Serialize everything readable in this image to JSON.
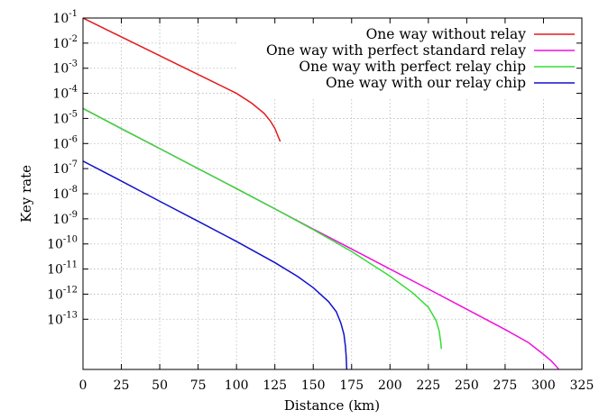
{
  "chart_data": {
    "type": "line",
    "title": "",
    "xlabel": "Distance (km)",
    "ylabel": "Key rate",
    "xlim": [
      0,
      325
    ],
    "x_ticks": [
      0,
      25,
      50,
      75,
      100,
      125,
      150,
      175,
      200,
      225,
      250,
      275,
      300,
      325
    ],
    "y_scale": "log",
    "ylim_exponent": [
      -15,
      -1
    ],
    "y_tick_exponents": [
      -1,
      -2,
      -3,
      -4,
      -5,
      -6,
      -7,
      -8,
      -9,
      -10,
      -11,
      -12,
      -13
    ],
    "grid": true,
    "legend_position": "top-right",
    "series": [
      {
        "name": "One way without relay",
        "color": "#e41a1c",
        "points": [
          [
            0,
            0.1
          ],
          [
            20,
            0.025
          ],
          [
            40,
            0.0063
          ],
          [
            60,
            0.00158
          ],
          [
            80,
            0.0004
          ],
          [
            100,
            0.0001
          ],
          [
            110,
            4e-05
          ],
          [
            118,
            1.6e-05
          ],
          [
            122,
            8e-06
          ],
          [
            125,
            4e-06
          ],
          [
            127,
            2e-06
          ],
          [
            128.5,
            1.2e-06
          ]
        ]
      },
      {
        "name": "One way with perfect standard relay",
        "color": "#ee11dd",
        "points": [
          [
            0,
            2.5e-05
          ],
          [
            25,
            3.9e-06
          ],
          [
            50,
            6.3e-07
          ],
          [
            75,
            1e-07
          ],
          [
            100,
            1.6e-08
          ],
          [
            125,
            2.5e-09
          ],
          [
            150,
            3.9e-10
          ],
          [
            175,
            6.3e-11
          ],
          [
            200,
            1e-11
          ],
          [
            225,
            1.6e-12
          ],
          [
            250,
            2.5e-13
          ],
          [
            275,
            3.9e-14
          ],
          [
            290,
            1.2e-14
          ],
          [
            300,
            4e-15
          ],
          [
            305,
            2.2e-15
          ],
          [
            309,
            1.2e-15
          ],
          [
            311,
            8e-16
          ],
          [
            313,
            5e-16
          ],
          [
            314.5,
            3e-16
          ],
          [
            315.5,
            2e-16
          ]
        ]
      },
      {
        "name": "One way with perfect relay chip",
        "color": "#33dd33",
        "points": [
          [
            0,
            2.5e-05
          ],
          [
            25,
            3.9e-06
          ],
          [
            50,
            6.3e-07
          ],
          [
            75,
            1e-07
          ],
          [
            100,
            1.6e-08
          ],
          [
            125,
            2.5e-09
          ],
          [
            150,
            3.7e-10
          ],
          [
            175,
            5e-11
          ],
          [
            200,
            5.2e-12
          ],
          [
            215,
            1.1e-12
          ],
          [
            225,
            3e-13
          ],
          [
            230,
            9e-14
          ],
          [
            232,
            3.5e-14
          ],
          [
            233,
            1.3e-14
          ],
          [
            233.5,
            6.5e-15
          ]
        ]
      },
      {
        "name": "One way with our relay chip",
        "color": "#1111cc",
        "points": [
          [
            0,
            2e-07
          ],
          [
            25,
            3.2e-08
          ],
          [
            50,
            5e-09
          ],
          [
            75,
            8e-10
          ],
          [
            100,
            1.26e-10
          ],
          [
            125,
            1.8e-11
          ],
          [
            140,
            5e-12
          ],
          [
            150,
            1.8e-12
          ],
          [
            160,
            5e-13
          ],
          [
            165,
            2e-13
          ],
          [
            168,
            7e-14
          ],
          [
            170,
            2.5e-14
          ],
          [
            171,
            8e-15
          ],
          [
            171.5,
            3e-15
          ],
          [
            171.8,
            1e-15
          ]
        ]
      }
    ]
  }
}
